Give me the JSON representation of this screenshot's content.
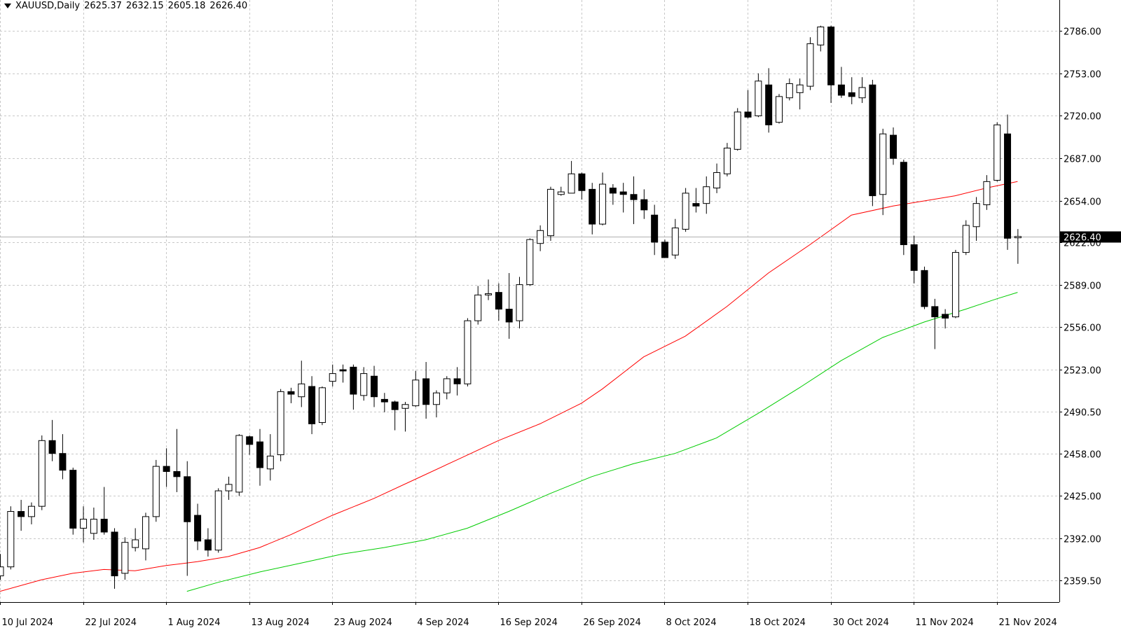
{
  "header": {
    "symbol": "XAUUSD,Daily",
    "open": "2625.37",
    "high": "2632.15",
    "low": "2605.18",
    "close": "2626.40",
    "menu_icon": "triangle-down-icon"
  },
  "colors": {
    "background": "#ffffff",
    "grid": "#c8c8c8",
    "candle": "#000000",
    "ma_fast": "#ff0000",
    "ma_slow": "#00cc00",
    "price_tag_bg": "#000000",
    "price_tag_text": "#ffffff"
  },
  "chart_data": {
    "type": "candlestick",
    "title": "XAUUSD,Daily",
    "ylim": [
      2350,
      2805
    ],
    "grid": true,
    "y_ticks": [
      "2786.00",
      "2753.00",
      "2720.00",
      "2687.00",
      "2654.00",
      "2622.00",
      "2589.00",
      "2556.00",
      "2523.00",
      "2490.50",
      "2458.00",
      "2425.00",
      "2392.00",
      "2359.50"
    ],
    "x_labels": [
      {
        "label": "10 Jul 2024",
        "index": 0
      },
      {
        "label": "22 Jul 2024",
        "index": 8
      },
      {
        "label": "1 Aug 2024",
        "index": 16
      },
      {
        "label": "13 Aug 2024",
        "index": 24
      },
      {
        "label": "23 Aug 2024",
        "index": 32
      },
      {
        "label": "4 Sep 2024",
        "index": 40
      },
      {
        "label": "16 Sep 2024",
        "index": 48
      },
      {
        "label": "26 Sep 2024",
        "index": 56
      },
      {
        "label": "8 Oct 2024",
        "index": 64
      },
      {
        "label": "18 Oct 2024",
        "index": 72
      },
      {
        "label": "30 Oct 2024",
        "index": 80
      },
      {
        "label": "11 Nov 2024",
        "index": 88
      },
      {
        "label": "21 Nov 2024",
        "index": 96
      }
    ],
    "current_price": "2626.40",
    "candles": [
      {
        "o": 2363,
        "h": 2380,
        "l": 2360,
        "c": 2370
      },
      {
        "o": 2370,
        "h": 2417,
        "l": 2368,
        "c": 2413
      },
      {
        "o": 2413,
        "h": 2422,
        "l": 2398,
        "c": 2409
      },
      {
        "o": 2409,
        "h": 2420,
        "l": 2403,
        "c": 2417
      },
      {
        "o": 2417,
        "h": 2472,
        "l": 2414,
        "c": 2468
      },
      {
        "o": 2468,
        "h": 2484,
        "l": 2452,
        "c": 2458
      },
      {
        "o": 2458,
        "h": 2473,
        "l": 2438,
        "c": 2445
      },
      {
        "o": 2445,
        "h": 2447,
        "l": 2395,
        "c": 2400
      },
      {
        "o": 2400,
        "h": 2417,
        "l": 2389,
        "c": 2407
      },
      {
        "o": 2396,
        "h": 2416,
        "l": 2391,
        "c": 2407
      },
      {
        "o": 2407,
        "h": 2432,
        "l": 2395,
        "c": 2397
      },
      {
        "o": 2397,
        "h": 2400,
        "l": 2353,
        "c": 2363
      },
      {
        "o": 2365,
        "h": 2393,
        "l": 2360,
        "c": 2389
      },
      {
        "o": 2385,
        "h": 2400,
        "l": 2382,
        "c": 2391
      },
      {
        "o": 2384,
        "h": 2412,
        "l": 2375,
        "c": 2409
      },
      {
        "o": 2409,
        "h": 2453,
        "l": 2405,
        "c": 2448
      },
      {
        "o": 2448,
        "h": 2462,
        "l": 2432,
        "c": 2444
      },
      {
        "o": 2444,
        "h": 2477,
        "l": 2428,
        "c": 2440
      },
      {
        "o": 2440,
        "h": 2452,
        "l": 2363,
        "c": 2405
      },
      {
        "o": 2410,
        "h": 2419,
        "l": 2383,
        "c": 2390
      },
      {
        "o": 2391,
        "h": 2400,
        "l": 2378,
        "c": 2383
      },
      {
        "o": 2383,
        "h": 2431,
        "l": 2381,
        "c": 2429
      },
      {
        "o": 2429,
        "h": 2440,
        "l": 2422,
        "c": 2434
      },
      {
        "o": 2428,
        "h": 2473,
        "l": 2425,
        "c": 2472
      },
      {
        "o": 2471,
        "h": 2472,
        "l": 2457,
        "c": 2465
      },
      {
        "o": 2467,
        "h": 2477,
        "l": 2433,
        "c": 2447
      },
      {
        "o": 2446,
        "h": 2473,
        "l": 2437,
        "c": 2456
      },
      {
        "o": 2457,
        "h": 2508,
        "l": 2452,
        "c": 2506
      },
      {
        "o": 2506,
        "h": 2509,
        "l": 2497,
        "c": 2504
      },
      {
        "o": 2502,
        "h": 2530,
        "l": 2494,
        "c": 2512
      },
      {
        "o": 2510,
        "h": 2518,
        "l": 2473,
        "c": 2481
      },
      {
        "o": 2482,
        "h": 2510,
        "l": 2480,
        "c": 2509
      },
      {
        "o": 2514,
        "h": 2527,
        "l": 2510,
        "c": 2520
      },
      {
        "o": 2523,
        "h": 2527,
        "l": 2513,
        "c": 2522
      },
      {
        "o": 2525,
        "h": 2527,
        "l": 2492,
        "c": 2504
      },
      {
        "o": 2503,
        "h": 2525,
        "l": 2499,
        "c": 2520
      },
      {
        "o": 2518,
        "h": 2526,
        "l": 2494,
        "c": 2502
      },
      {
        "o": 2500,
        "h": 2505,
        "l": 2490,
        "c": 2498
      },
      {
        "o": 2498,
        "h": 2499,
        "l": 2476,
        "c": 2492
      },
      {
        "o": 2493,
        "h": 2498,
        "l": 2475,
        "c": 2496
      },
      {
        "o": 2495,
        "h": 2522,
        "l": 2494,
        "c": 2515
      },
      {
        "o": 2516,
        "h": 2529,
        "l": 2485,
        "c": 2496
      },
      {
        "o": 2496,
        "h": 2507,
        "l": 2486,
        "c": 2505
      },
      {
        "o": 2505,
        "h": 2518,
        "l": 2500,
        "c": 2516
      },
      {
        "o": 2516,
        "h": 2525,
        "l": 2503,
        "c": 2512
      },
      {
        "o": 2512,
        "h": 2563,
        "l": 2510,
        "c": 2561
      },
      {
        "o": 2561,
        "h": 2588,
        "l": 2558,
        "c": 2581
      },
      {
        "o": 2581,
        "h": 2593,
        "l": 2577,
        "c": 2582
      },
      {
        "o": 2583,
        "h": 2590,
        "l": 2561,
        "c": 2570
      },
      {
        "o": 2570,
        "h": 2598,
        "l": 2547,
        "c": 2560
      },
      {
        "o": 2561,
        "h": 2595,
        "l": 2555,
        "c": 2589
      },
      {
        "o": 2589,
        "h": 2625,
        "l": 2588,
        "c": 2624
      },
      {
        "o": 2621,
        "h": 2635,
        "l": 2615,
        "c": 2631
      },
      {
        "o": 2627,
        "h": 2665,
        "l": 2623,
        "c": 2663
      },
      {
        "o": 2659,
        "h": 2665,
        "l": 2658,
        "c": 2661
      },
      {
        "o": 2660,
        "h": 2685,
        "l": 2660,
        "c": 2675
      },
      {
        "o": 2675,
        "h": 2676,
        "l": 2655,
        "c": 2662
      },
      {
        "o": 2663,
        "h": 2668,
        "l": 2628,
        "c": 2636
      },
      {
        "o": 2636,
        "h": 2676,
        "l": 2635,
        "c": 2667
      },
      {
        "o": 2664,
        "h": 2667,
        "l": 2651,
        "c": 2660
      },
      {
        "o": 2661,
        "h": 2668,
        "l": 2645,
        "c": 2659
      },
      {
        "o": 2659,
        "h": 2673,
        "l": 2636,
        "c": 2655
      },
      {
        "o": 2655,
        "h": 2663,
        "l": 2640,
        "c": 2647
      },
      {
        "o": 2643,
        "h": 2651,
        "l": 2612,
        "c": 2622
      },
      {
        "o": 2622,
        "h": 2624,
        "l": 2610,
        "c": 2610
      },
      {
        "o": 2612,
        "h": 2640,
        "l": 2609,
        "c": 2633
      },
      {
        "o": 2632,
        "h": 2664,
        "l": 2630,
        "c": 2660
      },
      {
        "o": 2652,
        "h": 2664,
        "l": 2645,
        "c": 2650
      },
      {
        "o": 2652,
        "h": 2673,
        "l": 2644,
        "c": 2665
      },
      {
        "o": 2664,
        "h": 2683,
        "l": 2660,
        "c": 2676
      },
      {
        "o": 2675,
        "h": 2699,
        "l": 2673,
        "c": 2695
      },
      {
        "o": 2694,
        "h": 2726,
        "l": 2693,
        "c": 2723
      },
      {
        "o": 2723,
        "h": 2740,
        "l": 2718,
        "c": 2719
      },
      {
        "o": 2720,
        "h": 2753,
        "l": 2719,
        "c": 2747
      },
      {
        "o": 2744,
        "h": 2757,
        "l": 2707,
        "c": 2713
      },
      {
        "o": 2715,
        "h": 2737,
        "l": 2714,
        "c": 2735
      },
      {
        "o": 2734,
        "h": 2749,
        "l": 2732,
        "c": 2745
      },
      {
        "o": 2738,
        "h": 2749,
        "l": 2725,
        "c": 2744
      },
      {
        "o": 2743,
        "h": 2781,
        "l": 2740,
        "c": 2776
      },
      {
        "o": 2775,
        "h": 2790,
        "l": 2770,
        "c": 2789
      },
      {
        "o": 2789,
        "h": 2790,
        "l": 2730,
        "c": 2744
      },
      {
        "o": 2744,
        "h": 2758,
        "l": 2734,
        "c": 2736
      },
      {
        "o": 2738,
        "h": 2750,
        "l": 2729,
        "c": 2735
      },
      {
        "o": 2734,
        "h": 2750,
        "l": 2730,
        "c": 2742
      },
      {
        "o": 2744,
        "h": 2748,
        "l": 2650,
        "c": 2658
      },
      {
        "o": 2659,
        "h": 2710,
        "l": 2643,
        "c": 2706
      },
      {
        "o": 2705,
        "h": 2711,
        "l": 2682,
        "c": 2687
      },
      {
        "o": 2684,
        "h": 2686,
        "l": 2612,
        "c": 2620
      },
      {
        "o": 2620,
        "h": 2627,
        "l": 2590,
        "c": 2600
      },
      {
        "o": 2600,
        "h": 2603,
        "l": 2570,
        "c": 2572
      },
      {
        "o": 2572,
        "h": 2578,
        "l": 2539,
        "c": 2564
      },
      {
        "o": 2566,
        "h": 2570,
        "l": 2555,
        "c": 2563
      },
      {
        "o": 2564,
        "h": 2616,
        "l": 2563,
        "c": 2614
      },
      {
        "o": 2614,
        "h": 2639,
        "l": 2612,
        "c": 2635
      },
      {
        "o": 2634,
        "h": 2657,
        "l": 2623,
        "c": 2652
      },
      {
        "o": 2651,
        "h": 2674,
        "l": 2647,
        "c": 2669
      },
      {
        "o": 2670,
        "h": 2715,
        "l": 2669,
        "c": 2713
      },
      {
        "o": 2706,
        "h": 2721,
        "l": 2616,
        "c": 2625
      },
      {
        "o": 2625.37,
        "h": 2632.15,
        "l": 2605.18,
        "c": 2626.4
      }
    ],
    "ma_fast": [
      [
        0,
        2351
      ],
      [
        4,
        2360
      ],
      [
        7,
        2365
      ],
      [
        10,
        2368
      ],
      [
        13,
        2367
      ],
      [
        16,
        2371
      ],
      [
        19,
        2374
      ],
      [
        22,
        2378
      ],
      [
        25,
        2385
      ],
      [
        28,
        2395
      ],
      [
        32,
        2410
      ],
      [
        36,
        2423
      ],
      [
        40,
        2438
      ],
      [
        44,
        2453
      ],
      [
        48,
        2468
      ],
      [
        52,
        2481
      ],
      [
        56,
        2497
      ],
      [
        58,
        2508
      ],
      [
        62,
        2533
      ],
      [
        66,
        2549
      ],
      [
        70,
        2572
      ],
      [
        74,
        2598
      ],
      [
        78,
        2620
      ],
      [
        82,
        2643
      ],
      [
        86,
        2650
      ],
      [
        89,
        2654
      ],
      [
        92,
        2658
      ],
      [
        95,
        2664
      ],
      [
        98,
        2669
      ]
    ],
    "ma_slow": [
      [
        18,
        2351
      ],
      [
        21,
        2358
      ],
      [
        25,
        2366
      ],
      [
        29,
        2373
      ],
      [
        33,
        2380
      ],
      [
        37,
        2385
      ],
      [
        41,
        2391
      ],
      [
        45,
        2400
      ],
      [
        49,
        2413
      ],
      [
        53,
        2427
      ],
      [
        57,
        2440
      ],
      [
        61,
        2450
      ],
      [
        65,
        2458
      ],
      [
        69,
        2470
      ],
      [
        73,
        2489
      ],
      [
        77,
        2509
      ],
      [
        81,
        2530
      ],
      [
        85,
        2548
      ],
      [
        89,
        2560
      ],
      [
        93,
        2570
      ],
      [
        96,
        2578
      ],
      [
        98,
        2583
      ]
    ]
  }
}
